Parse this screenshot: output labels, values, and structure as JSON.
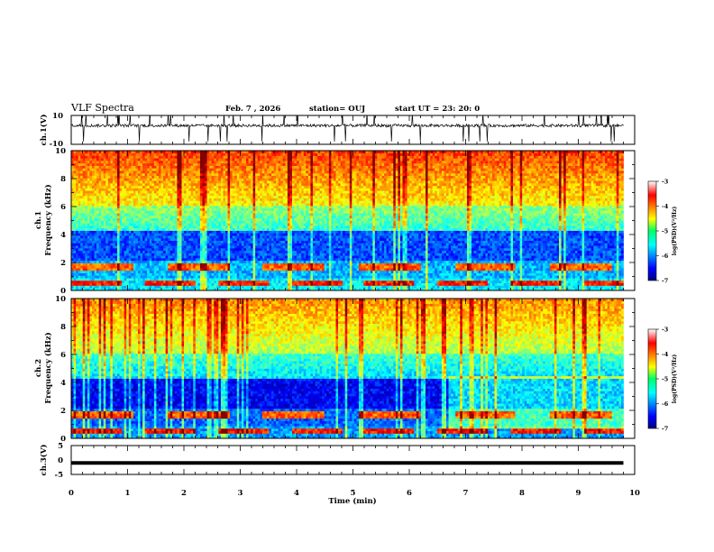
{
  "header": {
    "title": "VLF Spectra",
    "date": "Feb. 7 , 2026",
    "station": "station= OUJ",
    "start": "start  UT  =   23: 20: 0"
  },
  "chart_data": [
    {
      "type": "line",
      "name": "ch1-waveform",
      "ylabel": "ch.1(V)",
      "ylim": [
        -10,
        10
      ],
      "yticks": [
        "10",
        "-10"
      ],
      "xlim": [
        0,
        10
      ],
      "baseline": 3.0,
      "noise": 1.0,
      "spike_count": 40,
      "data_end_min": 9.8
    },
    {
      "type": "heatmap",
      "name": "ch1-spectrogram",
      "ylabel_lines": [
        "ch.1",
        "Frequency  (kHz)"
      ],
      "xlim": [
        0,
        10
      ],
      "ylim": [
        0,
        10
      ],
      "yticks": [
        "0",
        "2",
        "4",
        "6",
        "8",
        "10"
      ],
      "data_end_min": 9.8,
      "colorbar": {
        "label": "log(PSD)(V²/Hz)",
        "ticks": [
          "-3",
          "-4",
          "-5",
          "-6",
          "-7"
        ],
        "range": [
          -7,
          -3
        ]
      }
    },
    {
      "type": "heatmap",
      "name": "ch2-spectrogram",
      "ylabel_lines": [
        "ch.2",
        "Frequency  (kHz)"
      ],
      "xlim": [
        0,
        10
      ],
      "ylim": [
        0,
        10
      ],
      "yticks": [
        "0",
        "2",
        "4",
        "6",
        "8",
        "10"
      ],
      "data_end_min": 9.8,
      "colorbar": {
        "label": "log(PSD)(V²/Hz)",
        "ticks": [
          "-3",
          "-4",
          "-5",
          "-6",
          "-7"
        ],
        "range": [
          -7,
          -3
        ]
      }
    },
    {
      "type": "line",
      "name": "ch3-waveform",
      "ylabel": "ch.3(V)",
      "ylim": [
        -5,
        5
      ],
      "yticks": [
        "5",
        "0",
        "-5"
      ],
      "xlim": [
        0,
        10
      ],
      "value": -1,
      "data_end_min": 9.8
    }
  ],
  "xaxis": {
    "label": "Time  (min)",
    "ticks": [
      "0",
      "1",
      "2",
      "3",
      "4",
      "5",
      "6",
      "7",
      "8",
      "9",
      "10"
    ]
  }
}
